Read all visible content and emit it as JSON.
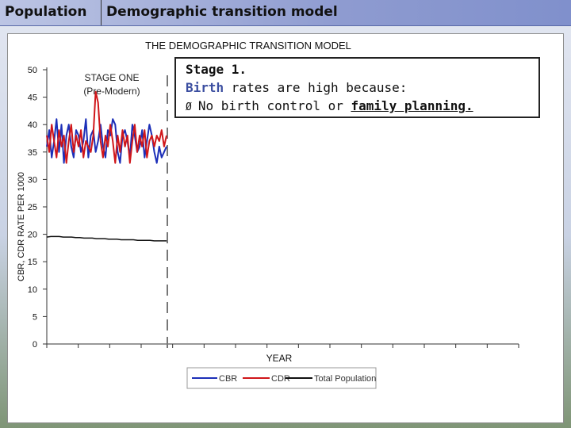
{
  "header": {
    "section_title": "Population",
    "slide_title": "Demographic transition model"
  },
  "callout": {
    "heading": "Stage 1.",
    "line2_highlight": "Birth",
    "line2_rest": " rates are high because:",
    "bullet_symbol": "Ø",
    "bullet_text": "No birth control or ",
    "bullet_emphasis": "family planning."
  },
  "chart_data": {
    "type": "line",
    "title": "THE DEMOGRAPHIC TRANSITION MODEL",
    "xlabel": "YEAR",
    "ylabel": "CBR, CDR RATE PER 1000",
    "ylim": [
      0,
      50
    ],
    "yticks": [
      "0",
      "5",
      "10",
      "15",
      "20",
      "25",
      "30",
      "35",
      "40",
      "45",
      "50"
    ],
    "annotation": "STAGE ONE (Pre-Modern)",
    "stage_label_lines": [
      "STAGE ONE",
      "(Pre-Modern)"
    ],
    "legend_position": "bottom-center",
    "grid": false,
    "series": [
      {
        "name": "CBR",
        "color": "#1c2fb8",
        "values": [
          36,
          39,
          34,
          37,
          41,
          35,
          40,
          33,
          38,
          40,
          36,
          34,
          39,
          38,
          35,
          37,
          41,
          34,
          38,
          39,
          35,
          37,
          40,
          36,
          34,
          39,
          38,
          41,
          40,
          35,
          33,
          38,
          39,
          37,
          34,
          40,
          38,
          35,
          36,
          39,
          34,
          37,
          40,
          38,
          35,
          33,
          36,
          34,
          35,
          36
        ]
      },
      {
        "name": "CDR",
        "color": "#d0161a",
        "values": [
          38,
          35,
          40,
          37,
          34,
          39,
          36,
          38,
          33,
          37,
          40,
          35,
          38,
          36,
          39,
          34,
          37,
          36,
          35,
          38,
          46,
          44,
          37,
          34,
          38,
          36,
          40,
          37,
          33,
          38,
          35,
          39,
          36,
          38,
          33,
          37,
          40,
          35,
          38,
          36,
          39,
          34,
          37,
          38,
          36,
          38,
          37,
          39,
          36,
          38
        ]
      },
      {
        "name": "Total Population",
        "color": "#111111",
        "values": [
          19.5,
          19.6,
          19.6,
          19.6,
          19.5,
          19.5,
          19.5,
          19.4,
          19.4,
          19.3,
          19.3,
          19.3,
          19.2,
          19.2,
          19.2,
          19.1,
          19.1,
          19.1,
          19.0,
          19.0,
          19.0,
          19.0,
          18.9,
          18.9,
          18.9,
          18.9,
          18.8,
          18.8,
          18.8,
          18.8
        ]
      }
    ]
  }
}
